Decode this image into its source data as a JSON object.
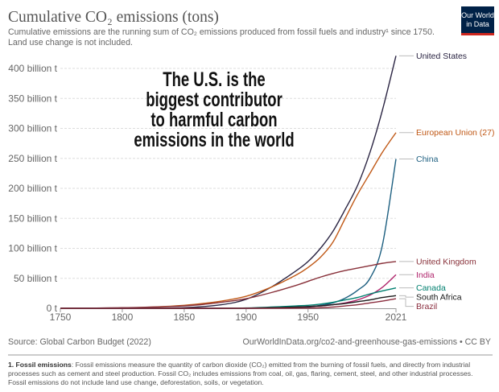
{
  "header": {
    "title": "Cumulative CO₂ emissions (tons)",
    "subtitle_line1": "Cumulative emissions are the running sum of CO₂ emissions produced from fossil fuels and industry¹ since 1750.",
    "subtitle_line2": "Land use change is not included.",
    "logo_line1": "Our World",
    "logo_line2": "in Data",
    "logo_color": "#002147",
    "logo_accent": "#ce261e"
  },
  "overlay": {
    "lines": [
      "The U.S. is the",
      "biggest contributor",
      "to harmful carbon",
      "emissions in the world"
    ]
  },
  "footer": {
    "source": "Source: Global Carbon Budget (2022)",
    "url": "OurWorldInData.org/co2-and-greenhouse-gas-emissions • CC BY",
    "note_bold": "1. Fossil emissions",
    "note_line1": ": Fossil emissions measure the quantity of carbon dioxide (CO₂) emitted from the burning of fossil fuels, and directly from industrial",
    "note_line2": "processes such as cement and steel production. Fossil CO₂ includes emissions from coal, oil, gas, flaring, cement, steel, and other industrial processes.",
    "note_line3": "Fossil emissions do not include land use change, deforestation, soils, or vegetation."
  },
  "chart_data": {
    "type": "line",
    "title": "Cumulative CO₂ emissions (tons)",
    "xlim": [
      1750,
      2021
    ],
    "ylim": [
      0,
      400
    ],
    "x_ticks": [
      "1750",
      "1800",
      "1850",
      "1900",
      "1950",
      "2021"
    ],
    "y_ticks": [
      "0 t",
      "50 billion t",
      "100 billion t",
      "150 billion t",
      "200 billion t",
      "250 billion t",
      "300 billion t",
      "350 billion t",
      "400 billion t"
    ],
    "y_unit": "billion t",
    "grid": "horizontal dashed",
    "legend": "right, labels at line ends",
    "x": [
      1750,
      1800,
      1850,
      1880,
      1900,
      1920,
      1940,
      1950,
      1960,
      1970,
      1980,
      1990,
      2000,
      2010,
      2021
    ],
    "series": [
      {
        "name": "United States",
        "color": "#2b2543",
        "values": [
          0,
          0.1,
          1,
          6,
          15,
          35,
          62,
          78,
          100,
          128,
          165,
          205,
          260,
          330,
          421
        ]
      },
      {
        "name": "European Union (27)",
        "color": "#c05917",
        "values": [
          0,
          0.5,
          5,
          12,
          20,
          35,
          55,
          68,
          85,
          110,
          150,
          190,
          225,
          260,
          293
        ]
      },
      {
        "name": "China",
        "color": "#1d5f80",
        "values": [
          0,
          0,
          0,
          0,
          0,
          0.5,
          1,
          2,
          5,
          9,
          17,
          30,
          50,
          105,
          249
        ]
      },
      {
        "name": "United Kingdom",
        "color": "#883039",
        "values": [
          0,
          1,
          4,
          10,
          16,
          26,
          38,
          45,
          52,
          58,
          63,
          67,
          71,
          75,
          78
        ]
      },
      {
        "name": "India",
        "color": "#b0256c",
        "values": [
          0,
          0,
          0,
          0.1,
          0.3,
          1,
          2,
          3,
          4,
          6,
          9,
          14,
          22,
          35,
          56
        ]
      },
      {
        "name": "Canada",
        "color": "#007f6f",
        "values": [
          0,
          0,
          0,
          0.1,
          0.5,
          2,
          4,
          5,
          7,
          10,
          14,
          18,
          24,
          29,
          34
        ]
      },
      {
        "name": "South Africa",
        "color": "#1a1a1a",
        "values": [
          0,
          0,
          0,
          0,
          0.2,
          1,
          2,
          3,
          4,
          6,
          8,
          11,
          14,
          18,
          21
        ]
      },
      {
        "name": "Brazil",
        "color": "#8a2d3e",
        "values": [
          0,
          0,
          0,
          0,
          0,
          0.1,
          0.3,
          0.5,
          1,
          2,
          4,
          6,
          9,
          12,
          16
        ]
      }
    ]
  }
}
